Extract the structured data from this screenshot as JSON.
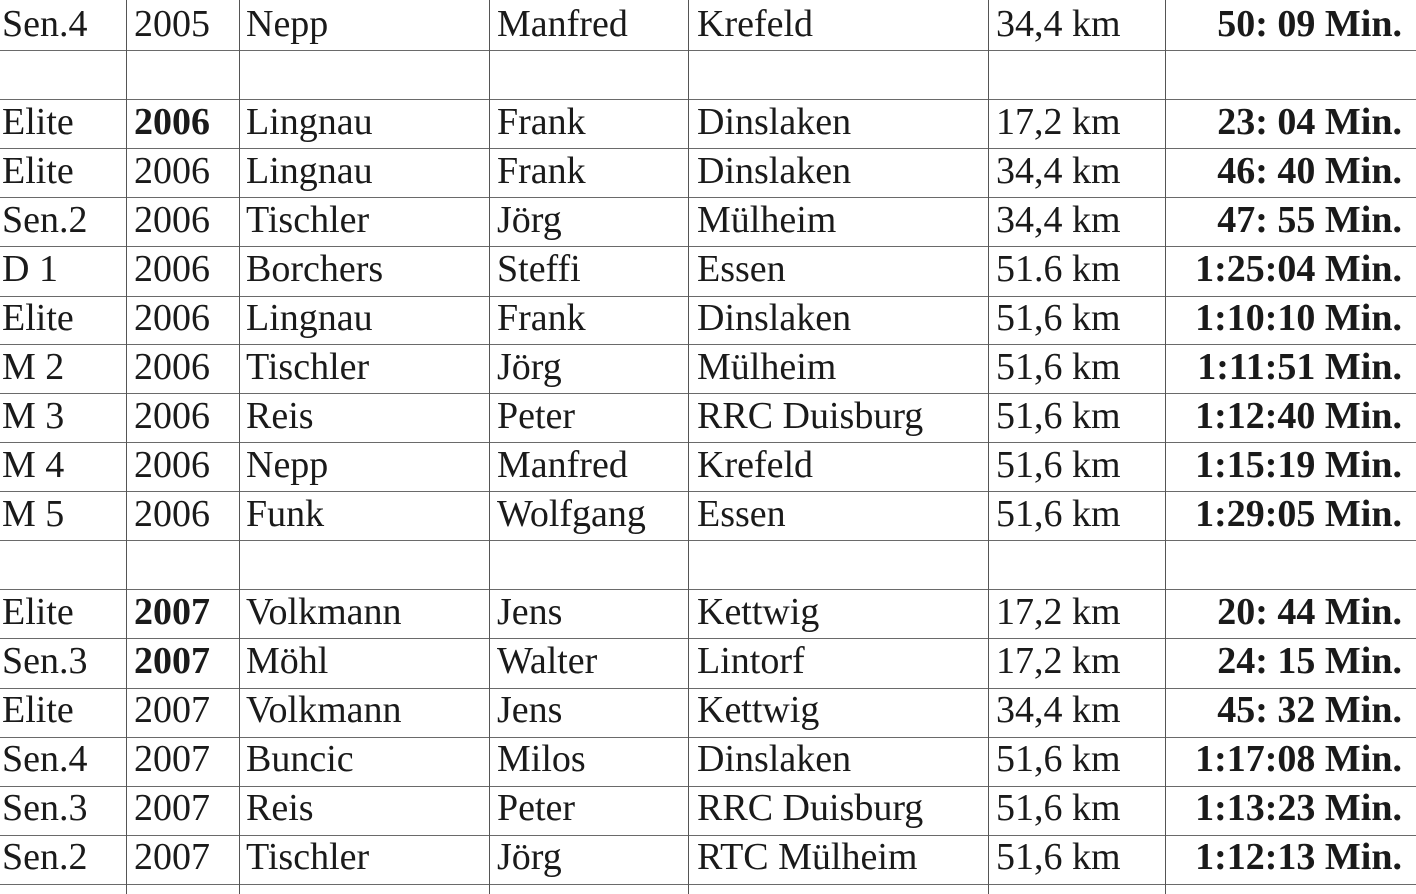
{
  "rows": [
    {
      "class": "Sen.4",
      "year": "2005",
      "last_name": "Nepp",
      "first_name": "Manfred",
      "city": "Krefeld",
      "distance": "34,4 km",
      "time": "50: 09 Min.",
      "year_bold": false
    },
    {
      "class": "",
      "year": "",
      "last_name": "",
      "first_name": "",
      "city": "",
      "distance": "",
      "time": "",
      "year_bold": false
    },
    {
      "class": "Elite",
      "year": "2006",
      "last_name": "Lingnau",
      "first_name": "Frank",
      "city": "Dinslaken",
      "distance": "17,2 km",
      "time": "23: 04 Min.",
      "year_bold": true
    },
    {
      "class": "Elite",
      "year": "2006",
      "last_name": "Lingnau",
      "first_name": "Frank",
      "city": "Dinslaken",
      "distance": "34,4 km",
      "time": "46: 40 Min.",
      "year_bold": false
    },
    {
      "class": "Sen.2",
      "year": "2006",
      "last_name": "Tischler",
      "first_name": "Jörg",
      "city": "Mülheim",
      "distance": "34,4 km",
      "time": "47: 55 Min.",
      "year_bold": false
    },
    {
      "class": "D 1",
      "year": "2006",
      "last_name": "Borchers",
      "first_name": "Steffi",
      "city": "Essen",
      "distance": "51.6 km",
      "time": "1:25:04 Min.",
      "year_bold": false
    },
    {
      "class": "Elite",
      "year": "2006",
      "last_name": "Lingnau",
      "first_name": "Frank",
      "city": "Dinslaken",
      "distance": "51,6 km",
      "time": "1:10:10 Min.",
      "year_bold": false
    },
    {
      "class": "M 2",
      "year": "2006",
      "last_name": "Tischler",
      "first_name": "Jörg",
      "city": "Mülheim",
      "distance": "51,6 km",
      "time": "1:11:51 Min.",
      "year_bold": false
    },
    {
      "class": "M 3",
      "year": "2006",
      "last_name": "Reis",
      "first_name": "Peter",
      "city": "RRC Duisburg",
      "distance": "51,6 km",
      "time": "1:12:40 Min.",
      "year_bold": false
    },
    {
      "class": "M 4",
      "year": "2006",
      "last_name": "Nepp",
      "first_name": "Manfred",
      "city": "Krefeld",
      "distance": "51,6 km",
      "time": "1:15:19 Min.",
      "year_bold": false
    },
    {
      "class": "M 5",
      "year": "2006",
      "last_name": "Funk",
      "first_name": "Wolfgang",
      "city": "Essen",
      "distance": "51,6 km",
      "time": "1:29:05 Min.",
      "year_bold": false
    },
    {
      "class": "",
      "year": "",
      "last_name": "",
      "first_name": "",
      "city": "",
      "distance": "",
      "time": "",
      "year_bold": false
    },
    {
      "class": "Elite",
      "year": "2007",
      "last_name": "Volkmann",
      "first_name": "Jens",
      "city": "Kettwig",
      "distance": "17,2 km",
      "time": "20: 44 Min.",
      "year_bold": true
    },
    {
      "class": "Sen.3",
      "year": "2007",
      "last_name": "Möhl",
      "first_name": "Walter",
      "city": "Lintorf",
      "distance": "17,2 km",
      "time": "24: 15 Min.",
      "year_bold": true
    },
    {
      "class": "Elite",
      "year": "2007",
      "last_name": "Volkmann",
      "first_name": "Jens",
      "city": "Kettwig",
      "distance": "34,4 km",
      "time": "45: 32 Min.",
      "year_bold": false
    },
    {
      "class": "Sen.4",
      "year": "2007",
      "last_name": "Buncic",
      "first_name": "Milos",
      "city": "Dinslaken",
      "distance": "51,6 km",
      "time": "1:17:08 Min.",
      "year_bold": false
    },
    {
      "class": "Sen.3",
      "year": "2007",
      "last_name": "Reis",
      "first_name": "Peter",
      "city": "RRC Duisburg",
      "distance": "51,6 km",
      "time": "1:13:23 Min.",
      "year_bold": false
    },
    {
      "class": "Sen.2",
      "year": "2007",
      "last_name": "Tischler",
      "first_name": "Jörg",
      "city": "RTC Mülheim",
      "distance": "51,6 km",
      "time": "1:12:13 Min.",
      "year_bold": false
    }
  ]
}
